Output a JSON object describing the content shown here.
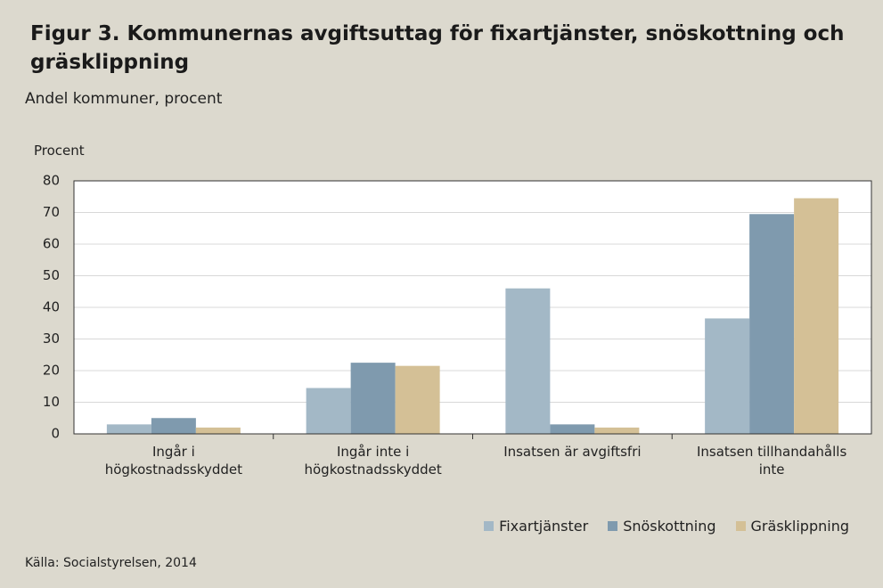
{
  "chart_data": {
    "type": "bar",
    "title": "Figur 3. Kommunernas avgiftsuttag för fixartjänster, snöskottning och gräsklippning",
    "subtitle": "Andel kommuner, procent",
    "y_label": "Procent",
    "source": "Källa: Socialstyrelsen, 2014",
    "categories": [
      "Ingår i högkostnadsskyddet",
      "Ingår inte i högkostnadsskyddet",
      "Insatsen är avgiftsfri",
      "Insatsen tillhandahålls inte"
    ],
    "series": [
      {
        "name": "Fixartjänster",
        "color": "#a3b8c6",
        "values": [
          3,
          14.5,
          46,
          36.5
        ]
      },
      {
        "name": "Snöskottning",
        "color": "#7f9aae",
        "values": [
          5,
          22.5,
          3,
          69.5
        ]
      },
      {
        "name": "Gräsklippning",
        "color": "#d4c096",
        "values": [
          2,
          21.5,
          2,
          74.5
        ]
      }
    ],
    "ylim": [
      0,
      80
    ],
    "yticks": [
      0,
      10,
      20,
      30,
      40,
      50,
      60,
      70,
      80
    ],
    "grid": true,
    "legend": "bottom-right"
  }
}
